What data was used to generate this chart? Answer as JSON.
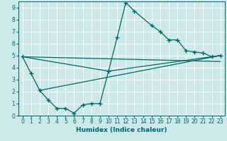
{
  "xlabel": "Humidex (Indice chaleur)",
  "bg_color": "#cce8e8",
  "grid_color": "#ffffff",
  "line_color": "#006666",
  "xlim": [
    -0.5,
    23.5
  ],
  "ylim": [
    0,
    9.5
  ],
  "xticks": [
    0,
    1,
    2,
    3,
    4,
    5,
    6,
    7,
    8,
    9,
    10,
    11,
    12,
    13,
    14,
    15,
    16,
    17,
    18,
    19,
    20,
    21,
    22,
    23
  ],
  "yticks": [
    0,
    1,
    2,
    3,
    4,
    5,
    6,
    7,
    8,
    9
  ],
  "main_x": [
    0,
    1,
    2,
    3,
    4,
    5,
    6,
    7,
    8,
    9,
    10,
    11,
    12,
    13,
    15,
    16,
    17,
    18,
    19,
    20,
    21,
    22,
    23
  ],
  "main_y": [
    4.9,
    3.5,
    2.1,
    1.3,
    0.6,
    0.6,
    0.2,
    0.9,
    1.0,
    1.0,
    3.7,
    6.5,
    9.4,
    8.7,
    7.5,
    7.0,
    6.3,
    6.3,
    5.4,
    5.3,
    5.2,
    4.9,
    5.0
  ],
  "trend_lines": [
    {
      "x": [
        0,
        10,
        23
      ],
      "y": [
        4.9,
        3.7,
        5.0
      ]
    },
    {
      "x": [
        0,
        23
      ],
      "y": [
        4.9,
        4.5
      ]
    },
    {
      "x": [
        2,
        23
      ],
      "y": [
        2.1,
        5.0
      ]
    }
  ]
}
